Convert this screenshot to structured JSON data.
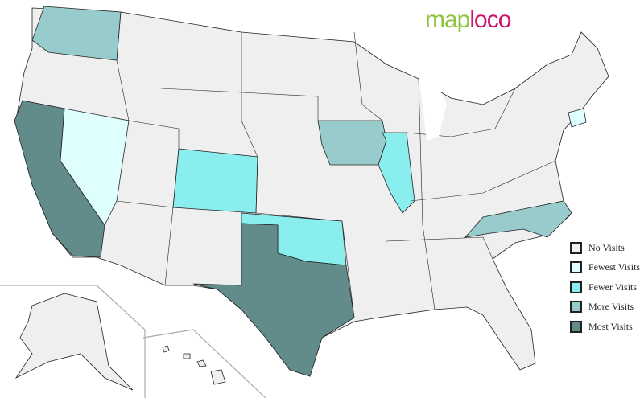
{
  "logo": {
    "part1": "map",
    "part2": "loco"
  },
  "colors": {
    "no": "#efefef",
    "fewest": "#dfffff",
    "fewer": "#8aeeee",
    "more": "#98cccc",
    "most": "#628c8c"
  },
  "legend": [
    {
      "label": "No Visits",
      "color": "#efefef"
    },
    {
      "label": "Fewest Visits",
      "color": "#dfffff"
    },
    {
      "label": "Fewer Visits",
      "color": "#8aeeee"
    },
    {
      "label": "More Visits",
      "color": "#98cccc"
    },
    {
      "label": "Most Visits",
      "color": "#628c8c"
    }
  ],
  "states": {
    "Washington": "more",
    "California": "most",
    "Nevada": "fewest",
    "Colorado": "fewer",
    "Iowa": "more",
    "Illinois": "fewer",
    "Oklahoma": "fewer",
    "Texas": "most",
    "North Carolina": "more",
    "Connecticut": "fewest"
  }
}
